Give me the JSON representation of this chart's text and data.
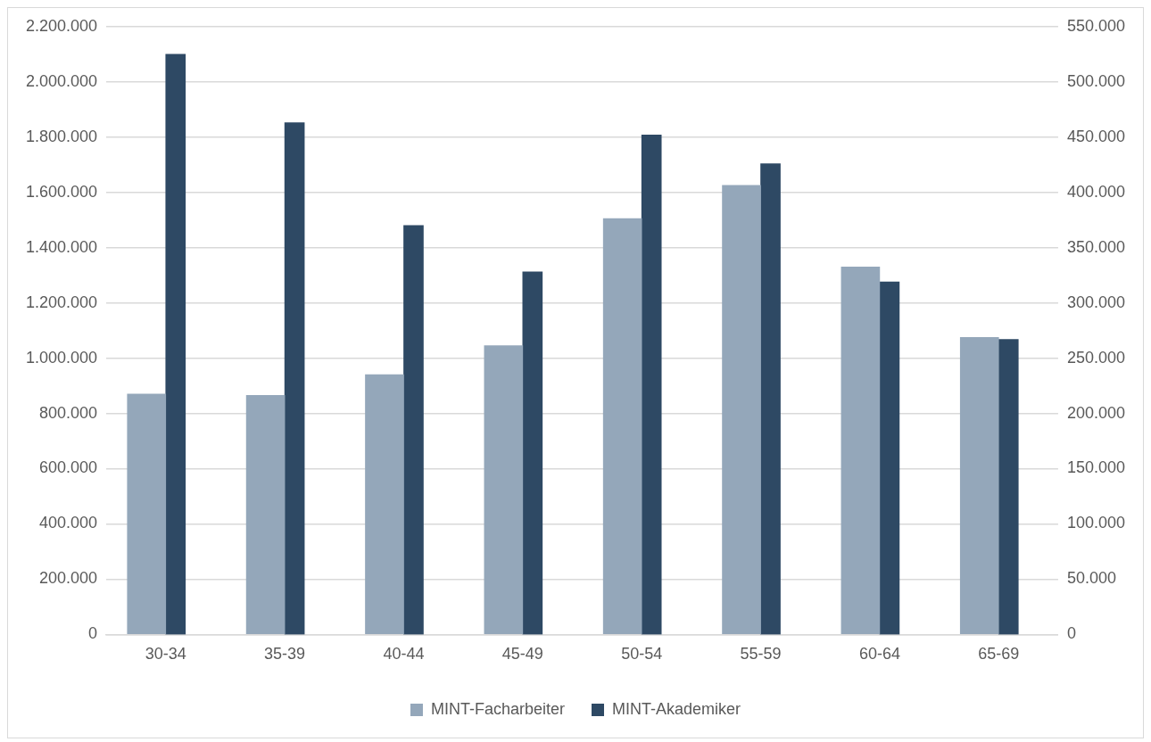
{
  "chart_data": {
    "type": "bar",
    "categories": [
      "30-34",
      "35-39",
      "40-44",
      "45-49",
      "50-54",
      "55-59",
      "60-64",
      "65-69"
    ],
    "series": [
      {
        "name": "MINT-Facharbeiter",
        "color": "#94a7ba",
        "values": [
          870000,
          865000,
          940000,
          1045000,
          1505000,
          1625000,
          1330000,
          1075000
        ]
      },
      {
        "name": "MINT-Akademiker",
        "color": "#2e4964",
        "axis": "y2",
        "values": [
          525000,
          463000,
          370000,
          328000,
          452000,
          426000,
          319000,
          267000
        ]
      }
    ],
    "ylim": [
      0,
      2200000
    ],
    "yticks": [
      {
        "value": 0,
        "label": "0"
      },
      {
        "value": 200000,
        "label": "200.000"
      },
      {
        "value": 400000,
        "label": "400.000"
      },
      {
        "value": 600000,
        "label": "600.000"
      },
      {
        "value": 800000,
        "label": "800.000"
      },
      {
        "value": 1000000,
        "label": "1.000.000"
      },
      {
        "value": 1200000,
        "label": "1.200.000"
      },
      {
        "value": 1400000,
        "label": "1.400.000"
      },
      {
        "value": 1600000,
        "label": "1.600.000"
      },
      {
        "value": 1800000,
        "label": "1.800.000"
      },
      {
        "value": 2000000,
        "label": "2.000.000"
      },
      {
        "value": 2200000,
        "label": "2.200.000"
      }
    ],
    "y2lim": [
      0,
      550000
    ],
    "y2ticks": [
      {
        "value": 0,
        "label": "0"
      },
      {
        "value": 50000,
        "label": "50.000"
      },
      {
        "value": 100000,
        "label": "100.000"
      },
      {
        "value": 150000,
        "label": "150.000"
      },
      {
        "value": 200000,
        "label": "200.000"
      },
      {
        "value": 250000,
        "label": "250.000"
      },
      {
        "value": 300000,
        "label": "300.000"
      },
      {
        "value": 350000,
        "label": "350.000"
      },
      {
        "value": 400000,
        "label": "400.000"
      },
      {
        "value": 450000,
        "label": "450.000"
      },
      {
        "value": 500000,
        "label": "500.000"
      },
      {
        "value": 550000,
        "label": "550.000"
      }
    ],
    "grid": "y",
    "legend": "bottom"
  }
}
